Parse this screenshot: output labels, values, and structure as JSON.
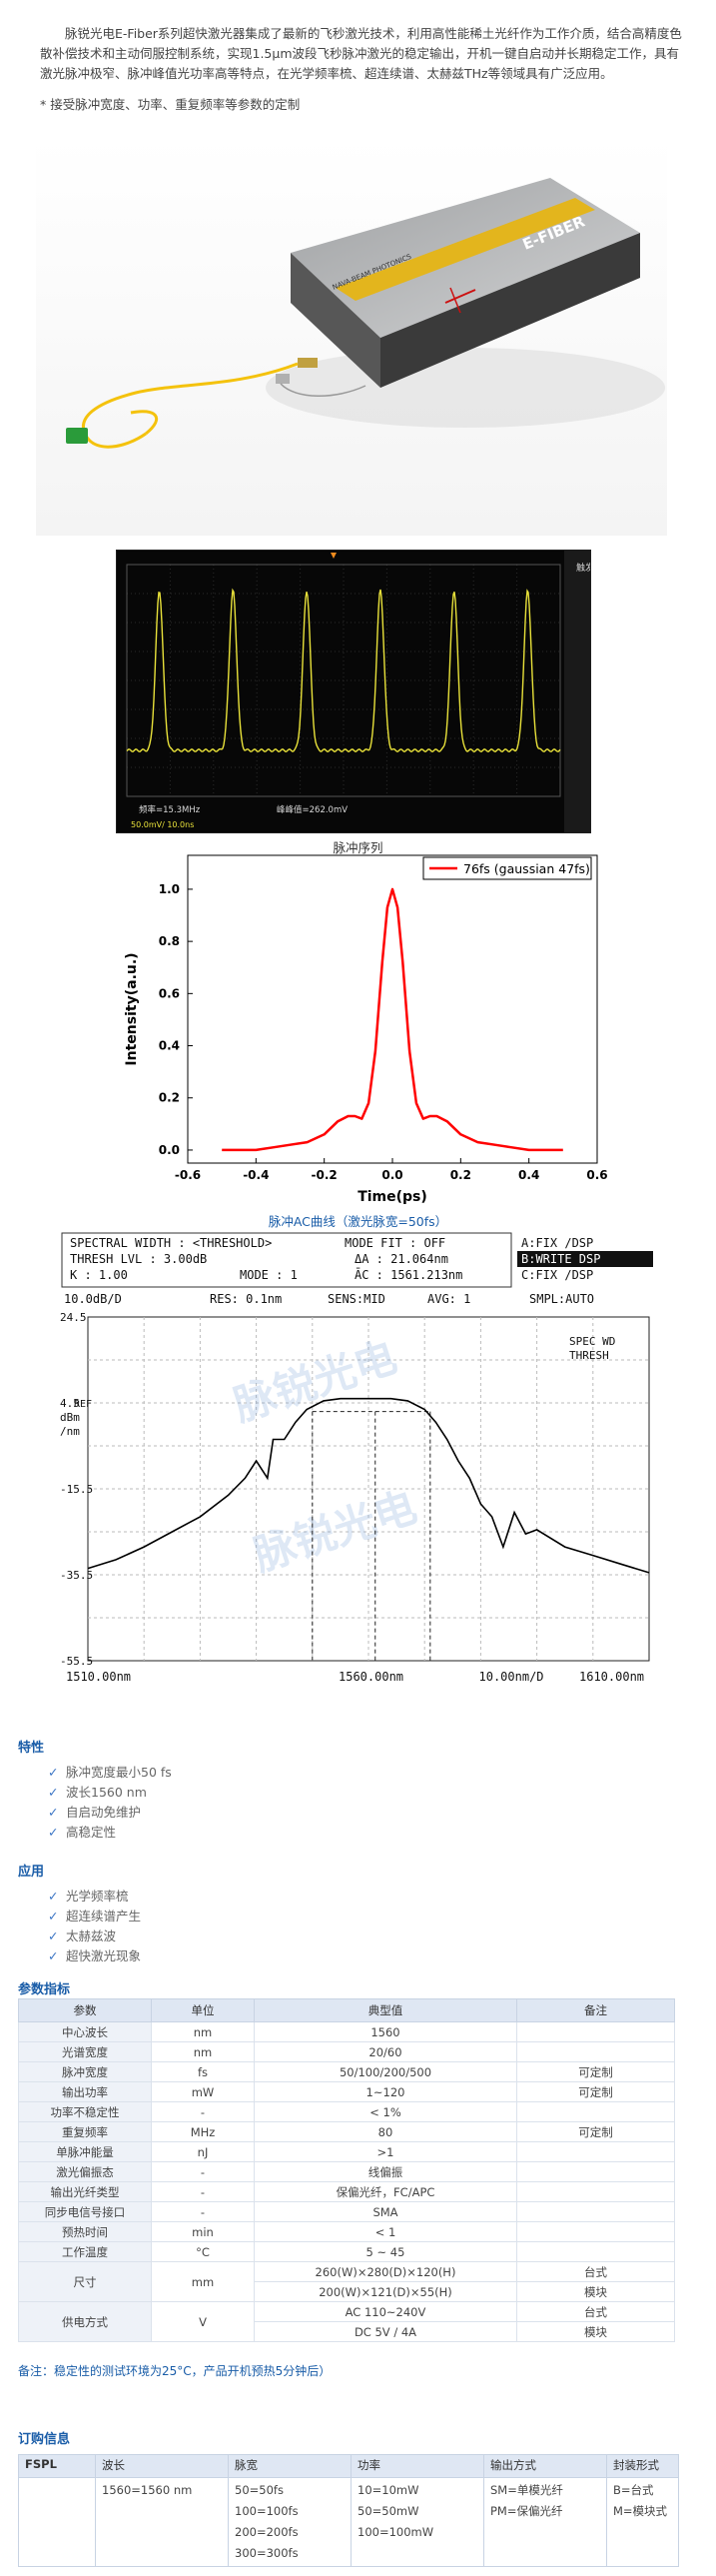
{
  "intro": {
    "paragraph": "脉锐光电E-Fiber系列超快激光器集成了最新的飞秒激光技术，利用高性能稀土光纤作为工作介质，结合高精度色散补偿技术和主动伺服控制系统，实现1.5μm波段飞秒脉冲激光的稳定输出，开机一键自启动并长期稳定工作，具有激光脉冲极窄、脉冲峰值光功率高等特点，在光学频率梳、超连续谱、太赫兹THz等领域具有广泛应用。",
    "note": "* 接受脉冲宽度、功率、重复频率等参数的定制"
  },
  "product": {
    "brand": "NAVA-BEAM PHOTONICS",
    "model": "E-FIBER"
  },
  "scope": {
    "caption": "脉冲序列",
    "left_readout": "频率=15.3MHz",
    "mid_readout": "峰峰值=262.0mV",
    "bottom_readout": "50.0mV/ 10.0ns",
    "side_label": "触发",
    "pulse_count": 6,
    "trace_color": "#e8e13a"
  },
  "chart_data": [
    {
      "type": "line",
      "title": "",
      "xlabel": "Time(ps)",
      "ylabel": "Intensity(a.u.)",
      "xlim": [
        -0.6,
        0.6
      ],
      "ylim": [
        -0.05,
        1.13
      ],
      "xticks": [
        "-0.6",
        "-0.4",
        "-0.2",
        "0.0",
        "0.2",
        "0.4",
        "0.6"
      ],
      "yticks": [
        "0.0",
        "0.2",
        "0.4",
        "0.6",
        "0.8",
        "1.0"
      ],
      "legend_position": "top-right",
      "grid": false,
      "series": [
        {
          "name": "76fs (gaussian 47fs)",
          "color": "#ff0000",
          "x": [
            -0.5,
            -0.45,
            -0.4,
            -0.35,
            -0.3,
            -0.25,
            -0.2,
            -0.16,
            -0.13,
            -0.11,
            -0.09,
            -0.07,
            -0.05,
            -0.03,
            -0.015,
            0.0,
            0.015,
            0.03,
            0.05,
            0.07,
            0.09,
            0.11,
            0.13,
            0.16,
            0.2,
            0.25,
            0.3,
            0.35,
            0.4,
            0.45,
            0.5
          ],
          "y": [
            0.0,
            0.0,
            0.0,
            0.01,
            0.02,
            0.03,
            0.06,
            0.11,
            0.13,
            0.13,
            0.12,
            0.18,
            0.38,
            0.72,
            0.93,
            1.0,
            0.93,
            0.72,
            0.38,
            0.18,
            0.12,
            0.13,
            0.13,
            0.11,
            0.06,
            0.03,
            0.02,
            0.01,
            0.0,
            0.0,
            0.0
          ]
        }
      ]
    },
    {
      "type": "line",
      "title": "",
      "xlabel": "10.00nm/D",
      "ylabel": "dBm /nm",
      "xlim": [
        1510,
        1610
      ],
      "ylim": [
        -55.5,
        24.5
      ],
      "xticks": [
        "1510.00nm",
        "1560.00nm",
        "10.00nm/D",
        "1610.00nm"
      ],
      "yticks": [
        "24.5",
        "4.5",
        "-15.5",
        "-35.5",
        "-55.5"
      ],
      "series": [
        {
          "name": "",
          "color": "#000000",
          "x": [
            1510,
            1515,
            1520,
            1525,
            1530,
            1535,
            1538,
            1540,
            1542,
            1543,
            1545,
            1547,
            1549,
            1552,
            1555,
            1558,
            1561,
            1564,
            1567,
            1570,
            1572,
            1574,
            1576,
            1578,
            1580,
            1582,
            1584,
            1586,
            1588,
            1590,
            1595,
            1600,
            1605,
            1610
          ],
          "y": [
            -34,
            -32,
            -29,
            -25.5,
            -22,
            -17,
            -13,
            -9,
            -13,
            -4,
            -4,
            0,
            3,
            5,
            5.5,
            5.5,
            5.5,
            5.5,
            5,
            3,
            0,
            -4,
            -9,
            -13,
            -19,
            -22,
            -29,
            -21,
            -26,
            -25,
            -29,
            -31,
            -33,
            -35
          ]
        }
      ]
    }
  ],
  "ac_caption": "脉冲AC曲线（激光脉宽=50fs）",
  "osa": {
    "header_left": "SPECTRAL WIDTH : <THRESHOLD>",
    "header_mode": "MODE FIT : OFF",
    "thresh": "THRESH LVL :    3.00dB",
    "delta_lambda": "ΔA :    21.064nm",
    "k": "K :    1.00",
    "mode": "MODE : 1",
    "center": "ĀC : 1561.213nm",
    "side_a": "A:FIX    /DSP",
    "side_b": "B:WRITE   DSP",
    "side_c": "C:FIX    /DSP",
    "status_scale": "10.0dB/D",
    "status_res": "RES: 0.1nm",
    "status_sens": "SENS:MID",
    "status_avg": "AVG:    1",
    "status_smpl": "SMPL:AUTO",
    "spec_wd": "SPEC WD",
    "thresh_label": "THRESH",
    "ref_label": "REF",
    "watermark": "脉锐光电"
  },
  "features": {
    "title": "特性",
    "items": [
      "脉冲宽度最小50 fs",
      "波长1560 nm",
      "自启动免维护",
      "高稳定性"
    ]
  },
  "applications": {
    "title": "应用",
    "items": [
      "光学频率梳",
      "超连续谱产生",
      "太赫兹波",
      "超快激光现象"
    ]
  },
  "specs": {
    "title": "参数指标",
    "headers": [
      "参数",
      "单位",
      "典型值",
      "备注"
    ],
    "rows": [
      [
        "中心波长",
        "nm",
        "1560",
        ""
      ],
      [
        "光谱宽度",
        "nm",
        "20/60",
        ""
      ],
      [
        "脉冲宽度",
        "fs",
        "50/100/200/500",
        "可定制"
      ],
      [
        "输出功率",
        "mW",
        "1~120",
        "可定制"
      ],
      [
        "功率不稳定性",
        "-",
        "< 1%",
        ""
      ],
      [
        "重复频率",
        "MHz",
        "80",
        "可定制"
      ],
      [
        "单脉冲能量",
        "nJ",
        ">1",
        ""
      ],
      [
        "激光偏振态",
        "-",
        "线偏振",
        ""
      ],
      [
        "输出光纤类型",
        "-",
        "保偏光纤，FC/APC",
        ""
      ],
      [
        "同步电信号接口",
        "-",
        "SMA",
        ""
      ],
      [
        "预热时间",
        "min",
        "< 1",
        ""
      ],
      [
        "工作温度",
        "°C",
        "5 ~ 45",
        ""
      ]
    ],
    "size": {
      "label": "尺寸",
      "unit": "mm",
      "values": [
        "260(W)×280(D)×120(H)",
        "200(W)×121(D)×55(H)"
      ],
      "notes": [
        "台式",
        "模块"
      ]
    },
    "power": {
      "label": "供电方式",
      "unit": "V",
      "values": [
        "AC 110~240V",
        "DC 5V / 4A"
      ],
      "notes": [
        "台式",
        "模块"
      ]
    }
  },
  "remark": "备注：稳定性的测试环境为25°C，产品开机预热5分钟后）",
  "order": {
    "title": "订购信息",
    "headers": [
      "FSPL",
      "波长",
      "脉宽",
      "功率",
      "输出方式",
      "封装形式"
    ],
    "columns": [
      [
        ""
      ],
      [
        "1560=1560 nm"
      ],
      [
        "50=50fs",
        "100=100fs",
        "200=200fs",
        "300=300fs"
      ],
      [
        "10=10mW",
        "50=50mW",
        "100=100mW"
      ],
      [
        "SM=单模光纤",
        "PM=保偏光纤"
      ],
      [
        "B=台式",
        "M=模块式"
      ]
    ]
  }
}
